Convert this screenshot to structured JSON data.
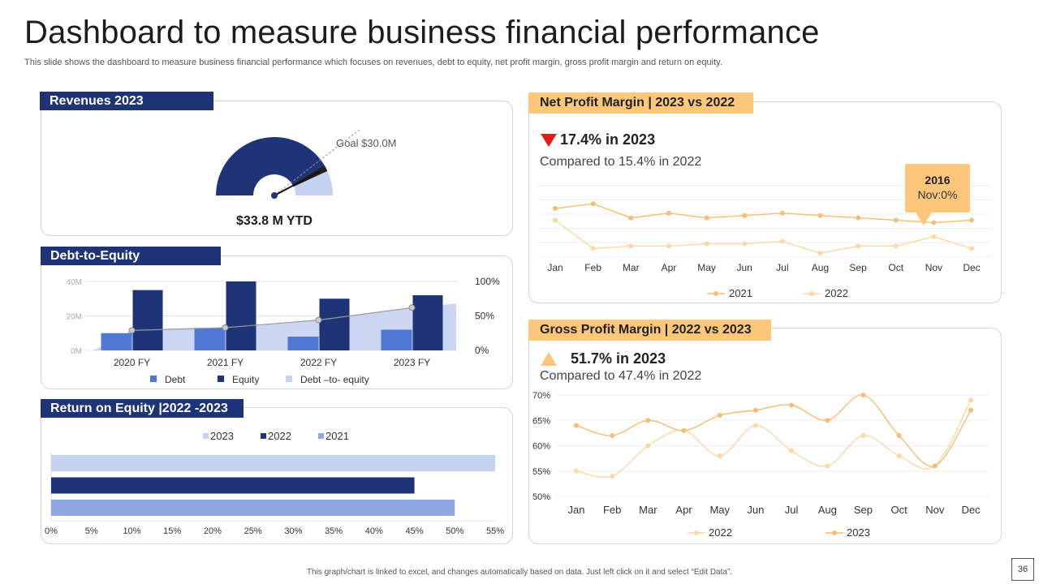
{
  "page": {
    "title": "Dashboard to measure business financial performance",
    "subtitle": "This slide shows the dashboard to measure business financial performance which focuses on revenues, debt to equity, net profit margin, gross profit margin and return on equity.",
    "footer": "This graph/chart is linked to excel, and changes automatically based on data. Just left click on it and select “Edit Data”.",
    "page_number": "36"
  },
  "colors": {
    "navy": "#1f3477",
    "blue": "#4f78d4",
    "light_blue": "#c6d2f1",
    "mid_blue": "#8ea6e3",
    "gold": "#fcc77a",
    "gold_line": "#f5be74",
    "gold_light": "#fbd8a4",
    "red": "#e31b1b"
  },
  "revenues": {
    "title": "Revenues 2023",
    "goal_label": "Goal $30.0M",
    "ytd_label": "$33.8 M YTD"
  },
  "net_profit": {
    "title": "Net Profit Margin | 2023 vs 2022",
    "headline": "17.4% in 2023",
    "compare": "Compared to 15.4% in 2022",
    "callout_year": "2016",
    "callout_value": "Nov:0%"
  },
  "gross_profit": {
    "title": "Gross Profit Margin | 2022 vs 2023",
    "headline": "51.7% in 2023",
    "compare": "Compared to 47.4% in 2022"
  },
  "debt_equity": {
    "title": "Debt-to-Equity"
  },
  "roe": {
    "title": "Return on Equity |2022 -2023"
  },
  "chart_data": [
    {
      "id": "revenues",
      "type": "gauge",
      "title": "Revenues 2023",
      "value": 33.8,
      "goal": 30.0,
      "max": 40,
      "unit": "$M"
    },
    {
      "id": "debt_equity",
      "type": "bar",
      "title": "Debt-to-Equity",
      "categories": [
        "2020 FY",
        "2021 FY",
        "2022 FY",
        "2023 FY"
      ],
      "series": [
        {
          "name": "Debt",
          "values": [
            10,
            13,
            8,
            12
          ]
        },
        {
          "name": "Equity",
          "values": [
            35,
            40,
            30,
            32
          ]
        },
        {
          "name": "Debt –to- equity",
          "axis": "secondary",
          "values": [
            29,
            33,
            44,
            62
          ]
        }
      ],
      "ylim": [
        0,
        40
      ],
      "yticks": [
        "0M",
        "20M",
        "40M"
      ],
      "y2lim": [
        0,
        100
      ],
      "y2ticks": [
        "0%",
        "50%",
        "100%"
      ]
    },
    {
      "id": "return_on_equity",
      "type": "bar",
      "orientation": "horizontal",
      "title": "Return on Equity |2022 -2023",
      "series": [
        {
          "name": "2023",
          "values": [
            55
          ]
        },
        {
          "name": "2022",
          "values": [
            45
          ]
        },
        {
          "name": "2021",
          "values": [
            50
          ]
        }
      ],
      "xlim": [
        0,
        55
      ],
      "xticks": [
        "0%",
        "5%",
        "10%",
        "15%",
        "20%",
        "25%",
        "30%",
        "35%",
        "40%",
        "45%",
        "50%",
        "55%"
      ]
    },
    {
      "id": "net_profit_margin",
      "type": "line",
      "title": "Net Profit Margin | 2023 vs 2022",
      "x": [
        "Jan",
        "Feb",
        "Mar",
        "Apr",
        "May",
        "Jun",
        "Jul",
        "Aug",
        "Sep",
        "Oct",
        "Nov",
        "Dec"
      ],
      "series": [
        {
          "name": "2021",
          "values": [
            20,
            22,
            16,
            18,
            16,
            17,
            18,
            17,
            16,
            15,
            14,
            15
          ]
        },
        {
          "name": "2022",
          "values": [
            15,
            3,
            4,
            4,
            5,
            5,
            6,
            1,
            4,
            4,
            8,
            3
          ]
        }
      ],
      "ylim": [
        0,
        30
      ]
    },
    {
      "id": "gross_profit_margin",
      "type": "line",
      "title": "Gross Profit Margin | 2022 vs 2023",
      "x": [
        "Jan",
        "Feb",
        "Mar",
        "Apr",
        "May",
        "Jun",
        "Jul",
        "Aug",
        "Sep",
        "Oct",
        "Nov",
        "Dec"
      ],
      "series": [
        {
          "name": "2022",
          "values": [
            55,
            54,
            60,
            63,
            58,
            64,
            59,
            56,
            62,
            58,
            56,
            69
          ]
        },
        {
          "name": "2023",
          "values": [
            64,
            62,
            65,
            63,
            66,
            67,
            68,
            65,
            70,
            62,
            56,
            67
          ]
        }
      ],
      "ylim": [
        50,
        70
      ],
      "yticks": [
        "50%",
        "55%",
        "60%",
        "65%",
        "70%"
      ]
    }
  ]
}
